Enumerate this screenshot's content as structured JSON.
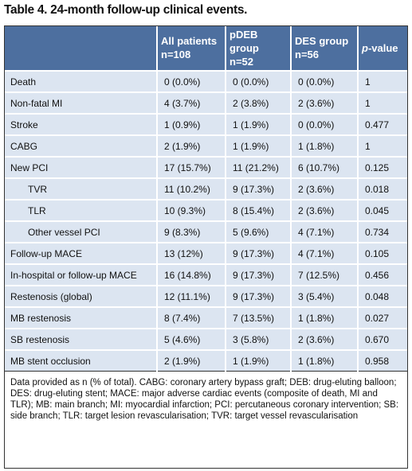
{
  "title": "Table 4. 24-month follow-up clinical events.",
  "table": {
    "header": [
      [
        "",
        ""
      ],
      [
        "All patients",
        "n=108"
      ],
      [
        "pDEB group",
        "n=52"
      ],
      [
        "DES group",
        "n=56"
      ],
      [
        "p-value",
        ""
      ]
    ],
    "rows": [
      {
        "label": "Death",
        "cells": [
          "0 (0.0%)",
          "0 (0.0%)",
          "0 (0.0%)",
          "1"
        ]
      },
      {
        "label": "Non-fatal MI",
        "cells": [
          "4 (3.7%)",
          "2 (3.8%)",
          "2 (3.6%)",
          "1"
        ]
      },
      {
        "label": "Stroke",
        "cells": [
          "1 (0.9%)",
          "1 (1.9%)",
          "0 (0.0%)",
          "0.477"
        ]
      },
      {
        "label": "CABG",
        "cells": [
          "2 (1.9%)",
          "1 (1.9%)",
          "1 (1.8%)",
          "1"
        ]
      },
      {
        "label": "New PCI",
        "cells": [
          "17 (15.7%)",
          "11 (21.2%)",
          "6 (10.7%)",
          "0.125"
        ]
      },
      {
        "label": "TVR",
        "indent": true,
        "cells": [
          "11 (10.2%)",
          "9 (17.3%)",
          "2 (3.6%)",
          "0.018"
        ]
      },
      {
        "label": "TLR",
        "indent": true,
        "cells": [
          "10 (9.3%)",
          "8 (15.4%)",
          "2 (3.6%)",
          "0.045"
        ]
      },
      {
        "label": "Other vessel PCI",
        "indent": true,
        "cells": [
          "9 (8.3%)",
          "5 (9.6%)",
          "4 (7.1%)",
          "0.734"
        ]
      },
      {
        "label": "Follow-up MACE",
        "cells": [
          "13 (12%)",
          "9 (17.3%)",
          "4 (7.1%)",
          "0.105"
        ]
      },
      {
        "label": "In-hospital or follow-up MACE",
        "cells": [
          "16 (14.8%)",
          "9 (17.3%)",
          "7 (12.5%)",
          "0.456"
        ]
      },
      {
        "label": "Restenosis (global)",
        "cells": [
          "12 (11.1%)",
          "9 (17.3%)",
          "3 (5.4%)",
          "0.048"
        ]
      },
      {
        "label": "MB restenosis",
        "cells": [
          "8 (7.4%)",
          "7 (13.5%)",
          "1 (1.8%)",
          "0.027"
        ]
      },
      {
        "label": "SB restenosis",
        "cells": [
          "5 (4.6%)",
          "3 (5.8%)",
          "2 (3.6%)",
          "0.670"
        ]
      },
      {
        "label": "MB stent occlusion",
        "cells": [
          "2 (1.9%)",
          "1 (1.9%)",
          "1 (1.8%)",
          "0.958"
        ]
      }
    ],
    "footnote": "Data provided as n (% of total). CABG: coronary artery bypass graft; DEB: drug-eluting balloon; DES: drug-eluting stent; MACE: major adverse cardiac events (composite of death, MI and TLR); MB: main branch; MI: myocardial infarction; PCI: percutaneous coronary intervention; SB: side branch; TLR: target lesion revascularisation; TVR: target vessel revascularisation"
  }
}
